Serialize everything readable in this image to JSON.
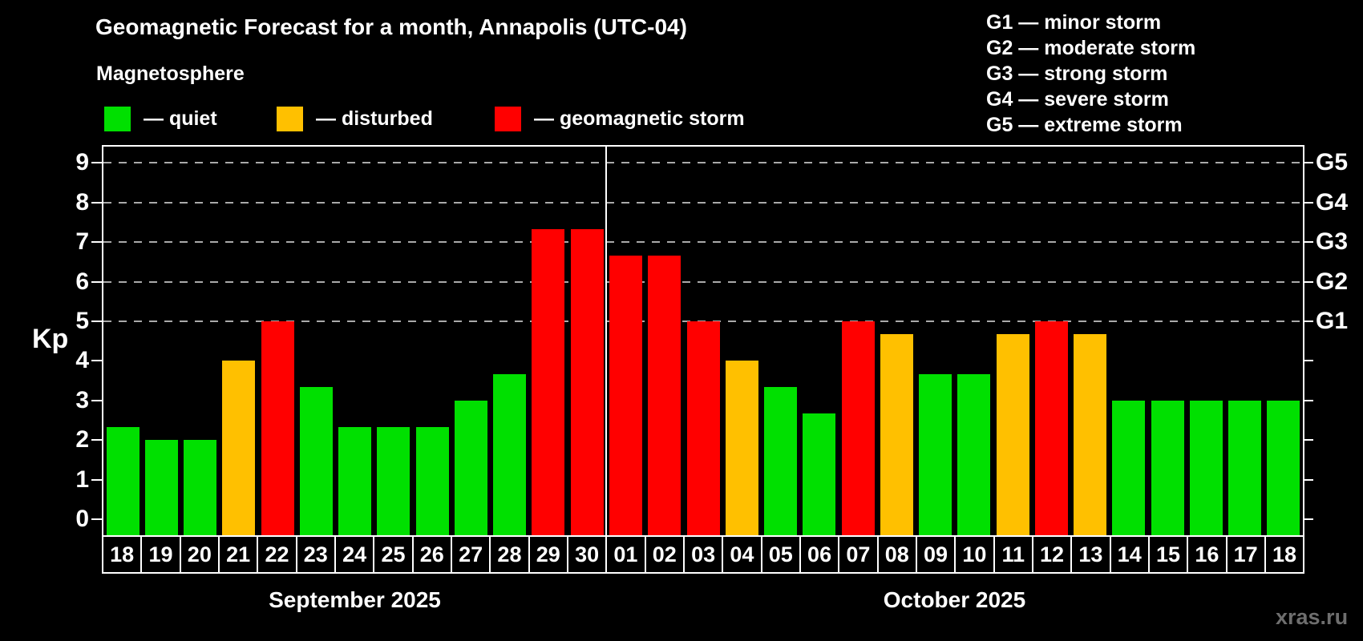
{
  "header": {
    "title": "Geomagnetic Forecast for a month, Annapolis (UTC-04)",
    "subtitle": "Magnetosphere"
  },
  "legend": {
    "items": [
      {
        "key": "quiet",
        "label": "— quiet",
        "color": "#00e000"
      },
      {
        "key": "disturbed",
        "label": "— disturbed",
        "color": "#ffc000"
      },
      {
        "key": "storm",
        "label": "— geomagnetic storm",
        "color": "#ff0000"
      }
    ]
  },
  "storm_scale_legend": {
    "items": [
      "G1 — minor storm",
      "G2 — moderate storm",
      "G3 — strong storm",
      "G4 — severe storm",
      "G5 — extreme storm"
    ]
  },
  "watermark": "xras.ru",
  "chart_data": {
    "type": "bar",
    "title": "Geomagnetic Forecast for a month, Annapolis (UTC-04)",
    "ylabel": "Kp",
    "ylim": [
      -0.4,
      9.4
    ],
    "y_ticks": [
      0,
      1,
      2,
      3,
      4,
      5,
      6,
      7,
      8,
      9
    ],
    "gridlines_at_kp": [
      5,
      6,
      7,
      8,
      9
    ],
    "grid": "dashed-horizontal",
    "right_axis": [
      {
        "kp": 5,
        "label": "G1"
      },
      {
        "kp": 6,
        "label": "G2"
      },
      {
        "kp": 7,
        "label": "G3"
      },
      {
        "kp": 8,
        "label": "G4"
      },
      {
        "kp": 9,
        "label": "G5"
      }
    ],
    "months": [
      {
        "key": "sep",
        "label": "September 2025",
        "days": 13
      },
      {
        "key": "oct",
        "label": "October 2025",
        "days": 18
      }
    ],
    "categories": [
      "18",
      "19",
      "20",
      "21",
      "22",
      "23",
      "24",
      "25",
      "26",
      "27",
      "28",
      "29",
      "30",
      "01",
      "02",
      "03",
      "04",
      "05",
      "06",
      "07",
      "08",
      "09",
      "10",
      "11",
      "12",
      "13",
      "14",
      "15",
      "16",
      "17",
      "18"
    ],
    "values": [
      2.33,
      2,
      2,
      4,
      5,
      3.33,
      2.33,
      2.33,
      2.33,
      3,
      3.67,
      7.33,
      7.33,
      6.67,
      6.67,
      5,
      4,
      3.33,
      2.67,
      5,
      4.67,
      3.67,
      3.67,
      4.67,
      5,
      4.67,
      3,
      3,
      3,
      3,
      3
    ],
    "statuses": [
      "quiet",
      "quiet",
      "quiet",
      "disturbed",
      "storm",
      "quiet",
      "quiet",
      "quiet",
      "quiet",
      "quiet",
      "quiet",
      "storm",
      "storm",
      "storm",
      "storm",
      "storm",
      "disturbed",
      "quiet",
      "quiet",
      "storm",
      "disturbed",
      "quiet",
      "quiet",
      "disturbed",
      "storm",
      "disturbed",
      "quiet",
      "quiet",
      "quiet",
      "quiet",
      "quiet"
    ],
    "status_colors": {
      "quiet": "#00e000",
      "disturbed": "#ffc000",
      "storm": "#ff0000"
    }
  }
}
